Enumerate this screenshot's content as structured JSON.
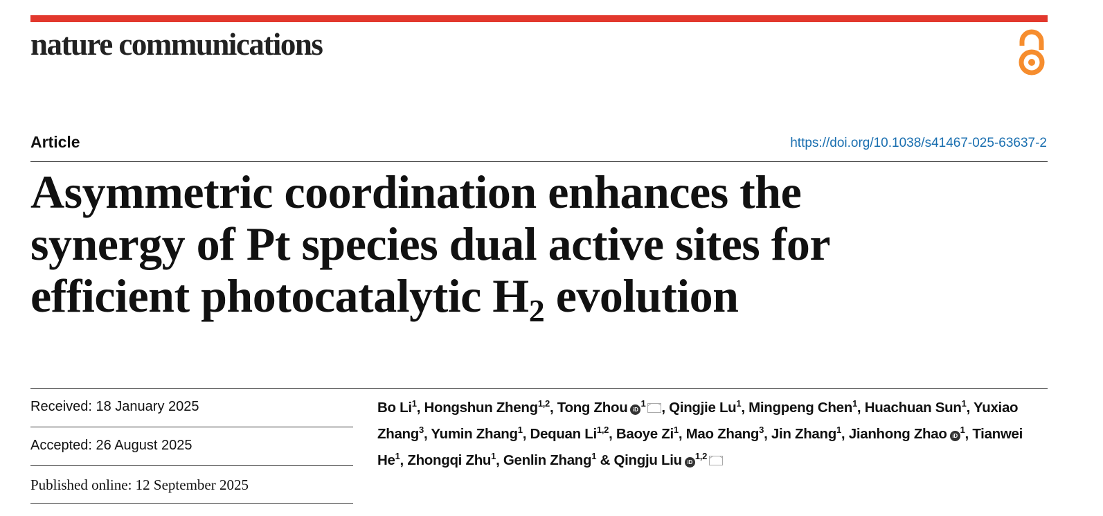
{
  "header": {
    "journal_name": "nature communications",
    "open_access_icon": "open-access-icon",
    "brand_color": "#e2382d",
    "oa_color": "#f68d2e"
  },
  "article": {
    "type": "Article",
    "doi": "https://doi.org/10.1038/s41467-025-63637-2",
    "title_line1": "Asymmetric coordination enhances the",
    "title_line2": "synergy of Pt species dual active sites for",
    "title_line3_pre": "efficient photocatalytic H",
    "title_line3_sub": "2",
    "title_line3_post": " evolution"
  },
  "dates": {
    "received": "Received: 18 January 2025",
    "accepted": "Accepted: 26 August 2025",
    "published": "Published online: 12 September 2025"
  },
  "authors": [
    {
      "name": "Bo Li",
      "sup": "1"
    },
    {
      "name": "Hongshun Zheng",
      "sup": "1,2"
    },
    {
      "name": "Tong Zhou",
      "sup": "1",
      "orcid": true,
      "email": true
    },
    {
      "name": "Qingjie Lu",
      "sup": "1"
    },
    {
      "name": "Mingpeng Chen",
      "sup": "1"
    },
    {
      "name": "Huachuan Sun",
      "sup": "1"
    },
    {
      "name": "Yuxiao Zhang",
      "sup": "3"
    },
    {
      "name": "Yumin Zhang",
      "sup": "1"
    },
    {
      "name": "Dequan Li",
      "sup": "1,2"
    },
    {
      "name": "Baoye Zi",
      "sup": "1"
    },
    {
      "name": "Mao Zhang",
      "sup": "3"
    },
    {
      "name": "Jin Zhang",
      "sup": "1"
    },
    {
      "name": "Jianhong Zhao",
      "sup": "1",
      "orcid": true
    },
    {
      "name": "Tianwei He",
      "sup": "1"
    },
    {
      "name": "Zhongqi Zhu",
      "sup": "1"
    },
    {
      "name": "Genlin Zhang",
      "sup": "1"
    },
    {
      "name": "Qingju Liu",
      "sup": "1,2",
      "orcid": true,
      "email": true
    }
  ],
  "author_separator": ", ",
  "author_last_separator": " & ",
  "orcid_label": "iD"
}
